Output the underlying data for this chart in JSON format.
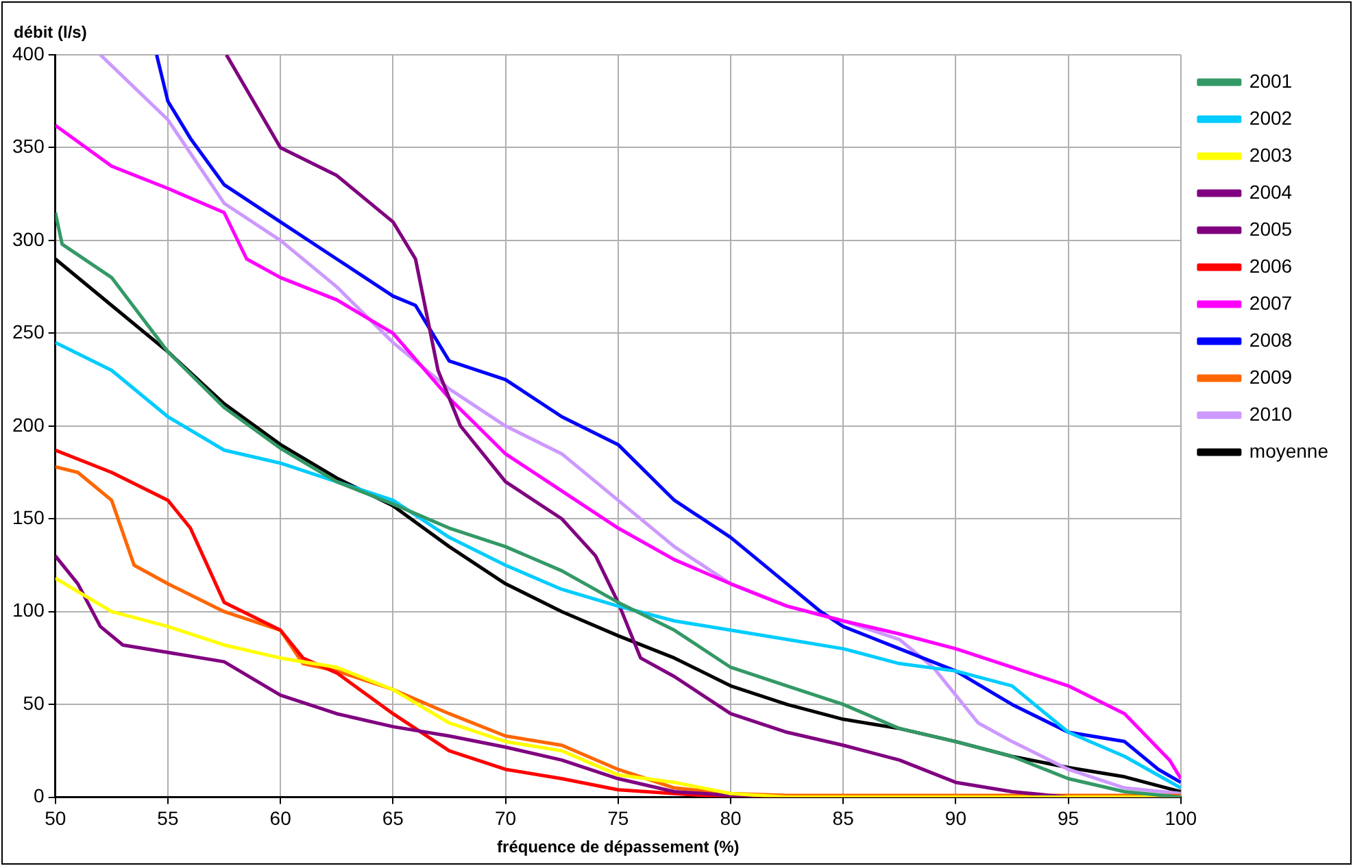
{
  "chart_data": {
    "type": "line",
    "xlabel": "fréquence de dépassement (%)",
    "ylabel": "débit (l/s)",
    "xlim": [
      50,
      100
    ],
    "xticks": [
      50,
      55,
      60,
      65,
      70,
      75,
      80,
      85,
      90,
      95,
      100
    ],
    "ylim": [
      0,
      400
    ],
    "yticks": [
      0,
      50,
      100,
      150,
      200,
      250,
      300,
      350,
      400
    ],
    "grid": true,
    "legend": "top right",
    "marker": "none",
    "line_style": "solid",
    "series": [
      {
        "name": "2001",
        "color": "#339966",
        "x": [
          50,
          50.3,
          52.5,
          55,
          57.5,
          60,
          62.5,
          65,
          67.5,
          70,
          72.5,
          75,
          77.5,
          80,
          82.5,
          85,
          87.5,
          90,
          92.5,
          95,
          97.5,
          100
        ],
        "values": [
          315,
          298,
          280,
          240,
          210,
          188,
          170,
          158,
          145,
          135,
          122,
          105,
          90,
          70,
          60,
          50,
          37,
          30,
          22,
          10,
          3,
          0
        ]
      },
      {
        "name": "2002",
        "color": "#00ccff",
        "x": [
          50,
          52.5,
          55,
          57.5,
          60,
          62.5,
          65,
          67.5,
          70,
          72.5,
          75,
          77.5,
          80,
          82.5,
          85,
          87.5,
          90,
          92.5,
          95,
          97.5,
          100
        ],
        "values": [
          245,
          230,
          205,
          187,
          180,
          170,
          160,
          140,
          125,
          112,
          103,
          95,
          90,
          85,
          80,
          72,
          68,
          60,
          35,
          22,
          5
        ]
      },
      {
        "name": "2003",
        "color": "#ffff00",
        "x": [
          50,
          52.5,
          55,
          57.5,
          60,
          62.5,
          65,
          67.5,
          70,
          72.5,
          75,
          77.5,
          80,
          82.5,
          85,
          90,
          95,
          100
        ],
        "values": [
          118,
          100,
          92,
          82,
          75,
          70,
          58,
          40,
          30,
          25,
          12,
          8,
          2,
          0,
          0,
          0,
          0,
          0
        ]
      },
      {
        "name": "2004",
        "color": "#800080",
        "x": [
          50,
          51,
          52,
          53,
          55,
          57.5,
          60,
          62.5,
          65,
          67.5,
          70,
          72.5,
          75,
          77.5,
          80,
          82.5,
          85,
          90,
          95,
          100
        ],
        "values": [
          130,
          115,
          92,
          82,
          78,
          73,
          55,
          45,
          38,
          33,
          27,
          20,
          10,
          3,
          1,
          0,
          0,
          0,
          0,
          0
        ]
      },
      {
        "name": "2005",
        "color": "#800080",
        "x": [
          57.6,
          60,
          62.5,
          65,
          66,
          67,
          68,
          70,
          72.5,
          74,
          75,
          76,
          77.5,
          80,
          82.5,
          85,
          87.5,
          90,
          92.5,
          95,
          100
        ],
        "values": [
          400,
          350,
          335,
          310,
          290,
          230,
          200,
          170,
          150,
          130,
          105,
          75,
          65,
          45,
          35,
          28,
          20,
          8,
          3,
          0,
          0
        ]
      },
      {
        "name": "2006",
        "color": "#ff0000",
        "x": [
          50,
          52.5,
          55,
          56,
          57.5,
          60,
          61,
          62.5,
          65,
          67.5,
          70,
          72.5,
          75,
          77.5,
          80,
          85,
          90,
          95,
          100
        ],
        "values": [
          187,
          175,
          160,
          145,
          105,
          90,
          75,
          67,
          45,
          25,
          15,
          10,
          4,
          2,
          0,
          0,
          0,
          0,
          0
        ]
      },
      {
        "name": "2007",
        "color": "#ff00ff",
        "x": [
          50,
          52.5,
          55,
          57.5,
          58.5,
          60,
          62.5,
          65,
          67.5,
          70,
          72.5,
          75,
          77.5,
          80,
          82.5,
          85,
          87.5,
          90,
          92.5,
          95,
          97.5,
          99.5,
          100
        ],
        "values": [
          362,
          340,
          328,
          315,
          290,
          280,
          268,
          250,
          215,
          185,
          165,
          145,
          128,
          115,
          103,
          95,
          88,
          80,
          70,
          60,
          45,
          20,
          10
        ]
      },
      {
        "name": "2008",
        "color": "#0000ff",
        "x": [
          54.5,
          55,
          56,
          57.5,
          60,
          62.5,
          65,
          66,
          67.5,
          70,
          72.5,
          75,
          77.5,
          80,
          82.5,
          84,
          85,
          87.5,
          90,
          92.5,
          95,
          97.5,
          99,
          100
        ],
        "values": [
          400,
          375,
          355,
          330,
          310,
          290,
          270,
          265,
          235,
          225,
          205,
          190,
          160,
          140,
          115,
          100,
          92,
          80,
          68,
          50,
          35,
          30,
          15,
          8
        ]
      },
      {
        "name": "2009",
        "color": "#ff6600",
        "x": [
          50,
          51,
          52.5,
          53.5,
          55,
          57.5,
          60,
          61,
          62.5,
          65,
          67.5,
          70,
          72.5,
          75,
          77.5,
          80,
          82.5,
          85,
          90,
          95,
          100
        ],
        "values": [
          178,
          175,
          160,
          125,
          115,
          100,
          90,
          72,
          68,
          58,
          45,
          33,
          28,
          15,
          5,
          2,
          1,
          1,
          1,
          1,
          1
        ]
      },
      {
        "name": "2010",
        "color": "#cc99ff",
        "x": [
          52,
          55,
          57.5,
          60,
          62.5,
          65,
          67.5,
          70,
          72.5,
          75,
          77.5,
          80,
          82.5,
          85,
          87.5,
          89,
          90,
          91,
          92.5,
          95,
          97.5,
          100
        ],
        "values": [
          400,
          365,
          320,
          300,
          275,
          245,
          220,
          200,
          185,
          160,
          135,
          115,
          103,
          95,
          85,
          70,
          55,
          40,
          30,
          15,
          5,
          2
        ]
      },
      {
        "name": "moyenne",
        "color": "#000000",
        "x": [
          50,
          52.5,
          55,
          57.5,
          60,
          62.5,
          65,
          67.5,
          70,
          72.5,
          75,
          77.5,
          80,
          82.5,
          85,
          87.5,
          90,
          92.5,
          95,
          97.5,
          100
        ],
        "values": [
          290,
          265,
          240,
          212,
          190,
          172,
          157,
          135,
          115,
          100,
          87,
          75,
          60,
          50,
          42,
          37,
          30,
          22,
          16,
          11,
          3
        ]
      }
    ]
  }
}
